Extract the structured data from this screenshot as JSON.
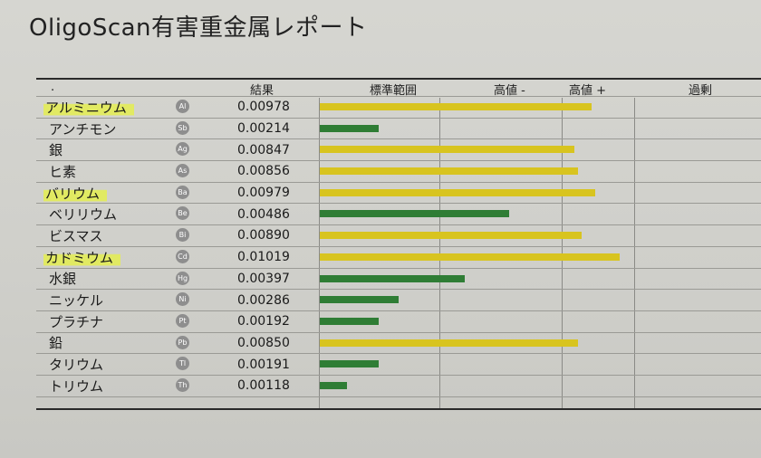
{
  "title": "OligoScan有害重金属レポート",
  "headers": {
    "dot": ".",
    "result": "結果",
    "standard_range": "標準範囲",
    "high_minus": "高値 -",
    "high_plus": "高値 +",
    "excess": "過剰"
  },
  "rows": [
    {
      "name": "アルミニウム",
      "symbol": "Al",
      "value": "0.00978",
      "level": 0.79,
      "status": "high",
      "highlight": true
    },
    {
      "name": "アンチモン",
      "symbol": "Sb",
      "value": "0.00214",
      "level": 0.17,
      "status": "normal",
      "highlight": false
    },
    {
      "name": "銀",
      "symbol": "Ag",
      "value": "0.00847",
      "level": 0.74,
      "status": "high",
      "highlight": false
    },
    {
      "name": "ヒ素",
      "symbol": "As",
      "value": "0.00856",
      "level": 0.75,
      "status": "high",
      "highlight": false
    },
    {
      "name": "バリウム",
      "symbol": "Ba",
      "value": "0.00979",
      "level": 0.8,
      "status": "high",
      "highlight": true
    },
    {
      "name": "ベリリウム",
      "symbol": "Be",
      "value": "0.00486",
      "level": 0.55,
      "status": "normal",
      "highlight": false
    },
    {
      "name": "ビスマス",
      "symbol": "Bi",
      "value": "0.00890",
      "level": 0.76,
      "status": "high",
      "highlight": false
    },
    {
      "name": "カドミウム",
      "symbol": "Cd",
      "value": "0.01019",
      "level": 0.87,
      "status": "high",
      "highlight": true
    },
    {
      "name": "水銀",
      "symbol": "Hg",
      "value": "0.00397",
      "level": 0.42,
      "status": "normal",
      "highlight": false
    },
    {
      "name": "ニッケル",
      "symbol": "Ni",
      "value": "0.00286",
      "level": 0.23,
      "status": "normal",
      "highlight": false
    },
    {
      "name": "プラチナ",
      "symbol": "Pt",
      "value": "0.00192",
      "level": 0.17,
      "status": "normal",
      "highlight": false
    },
    {
      "name": "鉛",
      "symbol": "Pb",
      "value": "0.00850",
      "level": 0.75,
      "status": "high",
      "highlight": false
    },
    {
      "name": "タリウム",
      "symbol": "Tl",
      "value": "0.00191",
      "level": 0.17,
      "status": "normal",
      "highlight": false
    },
    {
      "name": "トリウム",
      "symbol": "Th",
      "value": "0.00118",
      "level": 0.08,
      "status": "normal",
      "highlight": false
    }
  ],
  "colors": {
    "high": "#d8c41f",
    "normal": "#2f7d35",
    "badge": "#8e8e8e"
  }
}
